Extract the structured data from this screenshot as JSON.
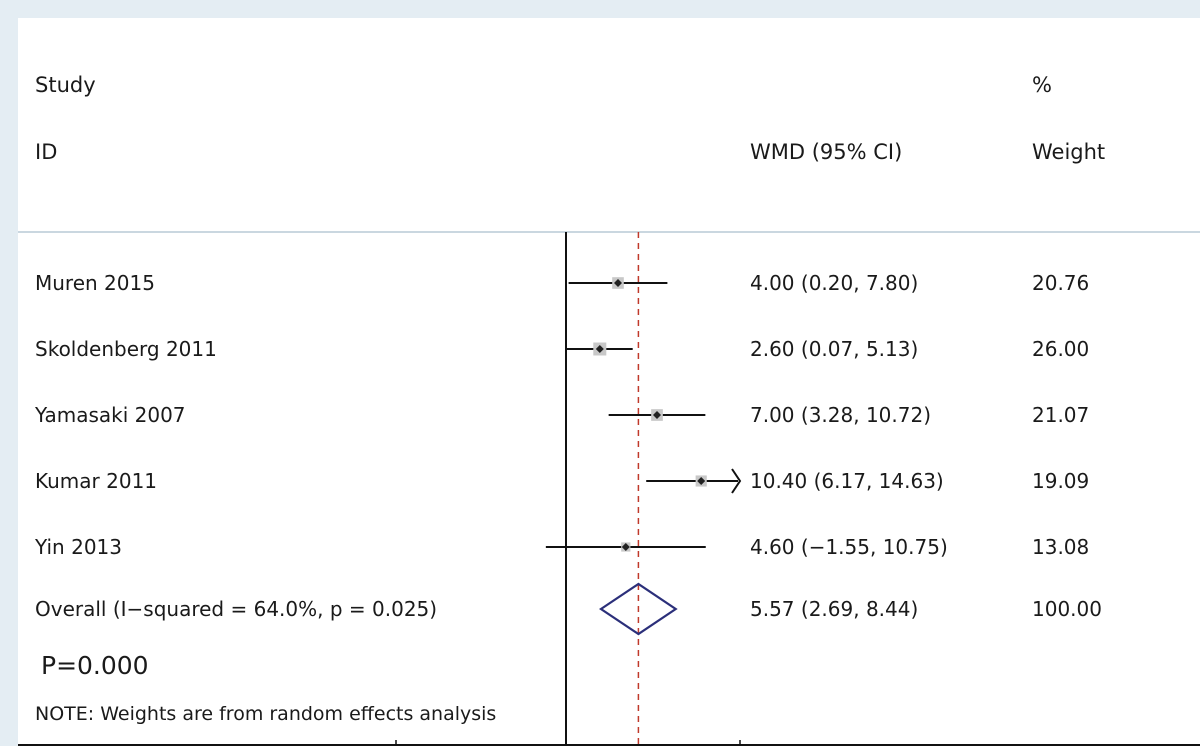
{
  "chart_data": {
    "type": "forest",
    "headers": {
      "study_line1": "Study",
      "study_line2": "ID",
      "effect": "WMD (95% CI)",
      "weight_line1": "%",
      "weight_line2": "Weight"
    },
    "null_value": 0,
    "overall_reference": 5.57,
    "studies": [
      {
        "id": "Muren 2015",
        "est": 4.0,
        "lo": 0.2,
        "hi": 7.8,
        "ci_text": "4.00 (0.20, 7.80)",
        "weight": 20.76,
        "weight_text": "20.76"
      },
      {
        "id": "Skoldenberg 2011",
        "est": 2.6,
        "lo": 0.07,
        "hi": 5.13,
        "ci_text": "2.60 (0.07, 5.13)",
        "weight": 26.0,
        "weight_text": "26.00"
      },
      {
        "id": "Yamasaki 2007",
        "est": 7.0,
        "lo": 3.28,
        "hi": 10.72,
        "ci_text": "7.00 (3.28, 10.72)",
        "weight": 21.07,
        "weight_text": "21.07"
      },
      {
        "id": "Kumar 2011",
        "est": 10.4,
        "lo": 6.17,
        "hi": 14.63,
        "ci_text": "10.40 (6.17, 14.63)",
        "weight": 19.09,
        "weight_text": "19.09",
        "truncated_high": true
      },
      {
        "id": "Yin 2013",
        "est": 4.6,
        "lo": -1.55,
        "hi": 10.75,
        "ci_text": "4.60 (−1.55, 10.75)",
        "weight": 13.08,
        "weight_text": "13.08"
      }
    ],
    "overall": {
      "label": "Overall  (I−squared = 64.0%, p = 0.025)",
      "est": 5.57,
      "lo": 2.69,
      "hi": 8.44,
      "ci_text": "5.57 (2.69, 8.44)",
      "weight_text": "100.00"
    },
    "p_value_text": "P=0.000",
    "note": "NOTE: Weights are from random effects analysis",
    "colors": {
      "diamond": "#2b2f7a",
      "reference_line": "#c0392b",
      "box": "#c8c8c8",
      "point": "#222222",
      "line": "#111111"
    }
  }
}
